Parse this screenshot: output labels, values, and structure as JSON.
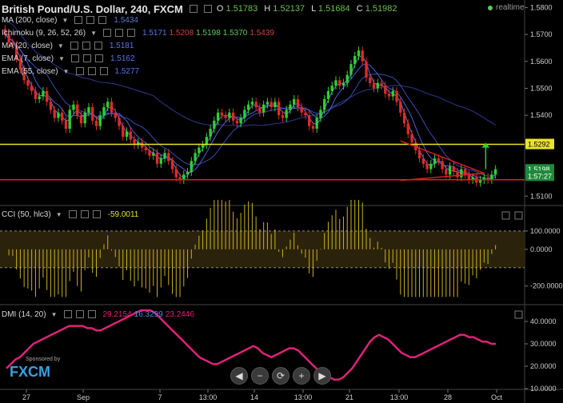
{
  "header": {
    "title": "British Pound/U.S. Dollar, 240, FXCM",
    "o_label": "O",
    "o": "1.51783",
    "h_label": "H",
    "h": "1.52137",
    "l_label": "L",
    "l": "1.51684",
    "c_label": "C",
    "c": "1.51982",
    "realtime": "realtime"
  },
  "legends": [
    {
      "name": "MA (200, close)",
      "value": "1.5434",
      "color": "#3f56c9"
    },
    {
      "name": "Ichimoku (9, 26, 52, 26)",
      "value": "1.5171",
      "values": [
        {
          "v": "1.5171",
          "color": "#3f56c9"
        },
        {
          "v": "1.5208",
          "color": "#c0392b"
        },
        {
          "v": "1.5198",
          "color": "#5cc85c"
        },
        {
          "v": "1.5370",
          "color": "#5cc85c"
        },
        {
          "v": "1.5439",
          "color": "#c0392b"
        }
      ]
    },
    {
      "name": "MA (20, close)",
      "value": "1.5181",
      "color": "#3f56c9"
    },
    {
      "name": "EMA (7, close)",
      "value": "1.5162",
      "color": "#3f56c9"
    },
    {
      "name": "EMA (55, close)",
      "value": "1.5277",
      "color": "#3f56c9"
    }
  ],
  "cci_legend": {
    "name": "CCI (50, hlc3)",
    "value": "-59.0011"
  },
  "dmi_legend": {
    "name": "DMI (14, 20)",
    "v1": "29.2154",
    "v2": "16.3299",
    "v3": "23.2446"
  },
  "logo": {
    "sponsored": "Sponsored by",
    "brand": "FXCM"
  },
  "controls": [
    "◀",
    "−",
    "⟳",
    "+",
    "▶"
  ],
  "chart_data": {
    "type": "candlestick",
    "title": "British Pound/U.S. Dollar, 240, FXCM",
    "price_axis": {
      "ticks": [
        1.58,
        1.57,
        1.56,
        1.55,
        1.54,
        1.51
      ],
      "tick_labels": [
        "1.5800",
        "1.5700",
        "1.5600",
        "1.5500",
        "1.5400",
        "1.5100"
      ],
      "ylim": [
        1.508,
        1.581
      ]
    },
    "price_badges": [
      {
        "label": "1.5292",
        "value": 1.5292,
        "color": "#e8e22c"
      },
      {
        "label": "1.5198",
        "value": 1.5198,
        "color": "#1c8a3a"
      },
      {
        "label": "1:57:27",
        "value": 1.5174,
        "color": "#1c8a3a"
      }
    ],
    "x_tick_labels": [
      "27",
      "Sep",
      "7",
      "13:00",
      "14",
      "13:00",
      "21",
      "13:00",
      "28",
      "Oct"
    ],
    "horizontal_lines": [
      {
        "value": 1.5292,
        "color": "#e8e22c"
      },
      {
        "value": 1.5161,
        "color": "#e02020"
      }
    ],
    "close_series": [
      1.57,
      1.567,
      1.566,
      1.561,
      1.557,
      1.553,
      1.551,
      1.549,
      1.546,
      1.547,
      1.549,
      1.545,
      1.542,
      1.539,
      1.541,
      1.538,
      1.535,
      1.542,
      1.544,
      1.54,
      1.537,
      1.541,
      1.543,
      1.538,
      1.536,
      1.54,
      1.543,
      1.545,
      1.541,
      1.539,
      1.536,
      1.532,
      1.534,
      1.531,
      1.529,
      1.53,
      1.528,
      1.527,
      1.525,
      1.526,
      1.522,
      1.524,
      1.526,
      1.523,
      1.52,
      1.517,
      1.516,
      1.518,
      1.519,
      1.523,
      1.526,
      1.528,
      1.529,
      1.532,
      1.535,
      1.538,
      1.541,
      1.54,
      1.539,
      1.541,
      1.538,
      1.537,
      1.539,
      1.542,
      1.544,
      1.545,
      1.543,
      1.541,
      1.544,
      1.545,
      1.543,
      1.545,
      1.54,
      1.539,
      1.542,
      1.544,
      1.546,
      1.543,
      1.541,
      1.54,
      1.536,
      1.535,
      1.539,
      1.542,
      1.546,
      1.549,
      1.551,
      1.553,
      1.551,
      1.552,
      1.555,
      1.559,
      1.562,
      1.564,
      1.56,
      1.554,
      1.552,
      1.55,
      1.552,
      1.551,
      1.548,
      1.547,
      1.549,
      1.545,
      1.541,
      1.537,
      1.533,
      1.53,
      1.527,
      1.524,
      1.522,
      1.52,
      1.522,
      1.524,
      1.523,
      1.52,
      1.518,
      1.521,
      1.519,
      1.517,
      1.52,
      1.518,
      1.516,
      1.517,
      1.515,
      1.516,
      1.517,
      1.516,
      1.518,
      1.52
    ],
    "cci": {
      "ticks": [
        100,
        0,
        -200
      ],
      "tick_labels": [
        "100.0000",
        "0.0000",
        "-200.0000"
      ],
      "last": -59.0011
    },
    "dmi": {
      "ticks": [
        40,
        30,
        20,
        10
      ],
      "tick_labels": [
        "40.0000",
        "30.0000",
        "20.0000",
        "10.0000"
      ],
      "series": [
        {
          "name": "",
          "color": "#e0207a",
          "values": [
            19,
            21,
            23,
            24,
            26,
            28,
            30,
            31,
            32,
            33,
            34,
            35,
            36,
            37,
            38,
            38,
            38,
            38,
            37,
            37,
            36,
            36,
            37,
            38,
            39,
            40,
            41,
            42,
            43,
            44,
            45,
            45,
            45,
            44,
            42,
            40,
            38,
            36,
            34,
            32,
            30,
            28,
            26,
            24,
            23,
            22,
            21,
            21,
            22,
            23,
            24,
            25,
            26,
            27,
            28,
            29,
            28,
            26,
            25,
            24,
            25,
            26,
            27,
            28,
            28,
            27,
            25,
            23,
            21,
            19,
            17,
            16,
            15,
            14,
            14,
            15,
            17,
            19,
            22,
            25,
            28,
            31,
            33,
            34,
            33,
            32,
            30,
            28,
            26,
            25,
            24,
            24,
            25,
            26,
            27,
            28,
            29,
            30,
            31,
            32,
            33,
            34,
            34,
            33,
            33,
            32,
            31,
            31,
            30,
            30
          ]
        }
      ]
    }
  }
}
